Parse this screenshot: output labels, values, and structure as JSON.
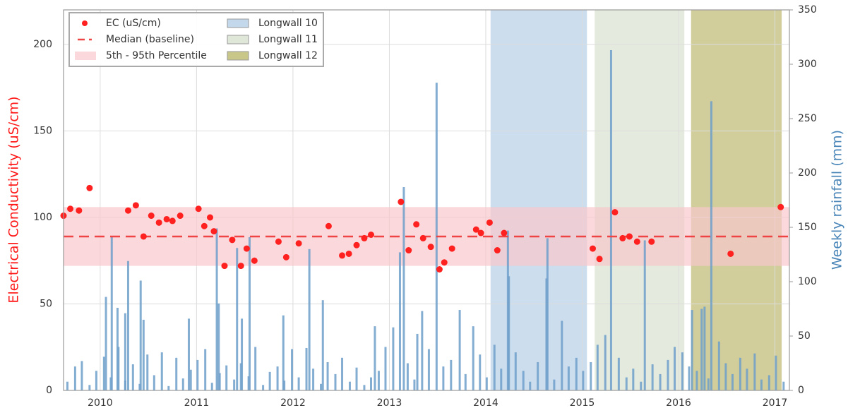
{
  "chart_data": {
    "type": "scatter",
    "ylabel": "Electrical Conductivity (uS/cm)",
    "y2label": "Weekly rainfall (mm)",
    "xlim": [
      2009.62,
      2017.15
    ],
    "xticks": [
      2010,
      2011,
      2012,
      2013,
      2014,
      2015,
      2016,
      2017
    ],
    "ylim": [
      0,
      220
    ],
    "yticks": [
      0,
      50,
      100,
      150,
      200
    ],
    "y2lim": [
      0,
      350
    ],
    "y2ticks": [
      0,
      50,
      100,
      150,
      200,
      250,
      300,
      350
    ],
    "grid": true,
    "legend": "upper left",
    "spans": [
      {
        "name": "Longwall 10",
        "start": 2014.05,
        "end": 2015.05,
        "color": "#c3d8eb"
      },
      {
        "name": "Longwall 11",
        "start": 2015.13,
        "end": 2016.06,
        "color": "#dfe8d8"
      },
      {
        "name": "Longwall 12",
        "start": 2016.13,
        "end": 2017.07,
        "color": "#c9c68a"
      }
    ],
    "percentile_band": {
      "name": "5th - 95th Percentile",
      "low": 72,
      "high": 106,
      "color": "#f8c8cc"
    },
    "median": {
      "name": "Median (baseline)",
      "value": 89,
      "color": "#ee4444"
    },
    "series": [
      {
        "name": "EC (uS/cm)",
        "type": "scatter",
        "color": "#ff2020",
        "x": [
          2009.62,
          2009.69,
          2009.78,
          2009.89,
          2010.29,
          2010.37,
          2010.45,
          2010.53,
          2010.61,
          2010.69,
          2010.75,
          2010.83,
          2011.02,
          2011.08,
          2011.14,
          2011.18,
          2011.29,
          2011.37,
          2011.46,
          2011.52,
          2011.6,
          2011.85,
          2011.93,
          2012.06,
          2012.37,
          2012.51,
          2012.58,
          2012.66,
          2012.74,
          2012.81,
          2013.12,
          2013.2,
          2013.28,
          2013.35,
          2013.43,
          2013.52,
          2013.57,
          2013.65,
          2013.9,
          2013.95,
          2014.04,
          2014.12,
          2014.19,
          2015.11,
          2015.18,
          2015.34,
          2015.42,
          2015.49,
          2015.57,
          2015.72,
          2016.54,
          2017.06
        ],
        "values": [
          101,
          105,
          104,
          117,
          104,
          107,
          89,
          101,
          97,
          99,
          98,
          101,
          105,
          95,
          100,
          92,
          72,
          87,
          72,
          82,
          75,
          86,
          77,
          85,
          95,
          78,
          79,
          84,
          88,
          90,
          109,
          81,
          96,
          88,
          83,
          70,
          74,
          82,
          93,
          91,
          97,
          81,
          91,
          82,
          76,
          103,
          88,
          89,
          86,
          86,
          79,
          106
        ]
      },
      {
        "type": "bar",
        "axis": "y2",
        "color": "#6f9fca",
        "x": [
          2009.66,
          2009.74,
          2009.81,
          2009.89,
          2009.96,
          2010.04,
          2010.11,
          2010.19,
          2010.26,
          2010.34,
          2010.41,
          2010.49,
          2010.56,
          2010.64,
          2010.71,
          2010.79,
          2010.86,
          2010.94,
          2011.01,
          2011.09,
          2011.16,
          2011.24,
          2011.31,
          2011.39,
          2011.46,
          2011.54,
          2011.61,
          2011.69,
          2011.76,
          2011.84,
          2011.91,
          2011.99,
          2012.06,
          2012.14,
          2012.21,
          2012.29,
          2012.36,
          2012.44,
          2012.51,
          2012.59,
          2012.66,
          2012.74,
          2012.81,
          2012.89,
          2012.96,
          2013.04,
          2013.19,
          2013.26,
          2013.41,
          2013.56,
          2013.64,
          2013.79,
          2013.94,
          2014.01,
          2014.09,
          2014.16,
          2014.31,
          2014.39,
          2014.46,
          2014.54,
          2014.71,
          2014.86,
          2014.94,
          2015.01,
          2015.09,
          2015.16,
          2015.24,
          2015.38,
          2015.46,
          2015.53,
          2015.61,
          2015.73,
          2015.81,
          2015.89,
          2015.96,
          2016.04,
          2016.11,
          2016.19,
          2016.31,
          2016.49,
          2016.56,
          2016.64,
          2016.71,
          2016.79,
          2016.86,
          2016.94,
          2017.01,
          2017.09,
          2010.06,
          2010.12,
          2010.18,
          2010.26,
          2010.29,
          2010.42,
          2010.45,
          2010.92,
          2011.21,
          2011.23,
          2011.42,
          2011.47,
          2011.55,
          2011.9,
          2012.17,
          2012.31,
          2012.85,
          2013.11,
          2013.15,
          2013.29,
          2013.34,
          2013.49,
          2013.73,
          2013.87,
          2014.23,
          2014.24,
          2014.63,
          2014.64,
          2014.79,
          2015.3,
          2015.65,
          2016.14,
          2016.24,
          2016.27,
          2016.34,
          2016.42
        ],
        "values": [
          8,
          22,
          27,
          5,
          18,
          31,
          12,
          40,
          9,
          24,
          6,
          33,
          14,
          35,
          4,
          30,
          11,
          19,
          28,
          38,
          7,
          16,
          23,
          10,
          25,
          13,
          40,
          5,
          17,
          22,
          9,
          38,
          12,
          39,
          20,
          6,
          26,
          15,
          30,
          8,
          21,
          5,
          12,
          18,
          40,
          58,
          25,
          10,
          38,
          22,
          28,
          15,
          33,
          12,
          42,
          20,
          35,
          18,
          8,
          26,
          10,
          22,
          30,
          18,
          26,
          42,
          51,
          30,
          12,
          20,
          8,
          24,
          15,
          28,
          40,
          35,
          22,
          18,
          11,
          25,
          15,
          30,
          20,
          34,
          10,
          14,
          32,
          8,
          86,
          142,
          76,
          71,
          119,
          101,
          65,
          66,
          149,
          80,
          131,
          66,
          141,
          69,
          130,
          83,
          59,
          127,
          187,
          52,
          73,
          283,
          74,
          59,
          147,
          105,
          103,
          140,
          64,
          313,
          138,
          74,
          75,
          77,
          266,
          45
        ]
      }
    ]
  }
}
